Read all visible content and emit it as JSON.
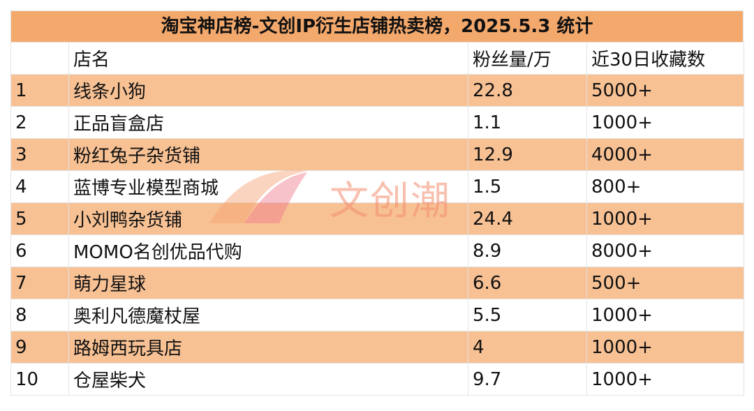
{
  "title": "淘宝神店榜-文创IP衍生店铺热卖榜，2025.5.3 统计",
  "table": {
    "columns": [
      "",
      "店名",
      "粉丝量/万",
      "近30日收藏数"
    ],
    "rows": [
      [
        1,
        "线条小狗",
        22.8,
        "5000+"
      ],
      [
        2,
        "正品盲盒店",
        1.1,
        "1000+"
      ],
      [
        3,
        "粉红兔子杂货铺",
        12.9,
        "4000+"
      ],
      [
        4,
        "蓝博专业模型商城",
        1.5,
        "800+"
      ],
      [
        5,
        "小刘鸭杂货铺",
        24.4,
        "1000+"
      ],
      [
        6,
        "MOMO名创优品代购",
        8.9,
        "8000+"
      ],
      [
        7,
        "萌力星球",
        6.6,
        "500+"
      ],
      [
        8,
        "奥利凡德魔杖屋",
        5.5,
        "1000+"
      ],
      [
        9,
        "路姆西玩具店",
        4,
        "1000+"
      ],
      [
        10,
        "仓屋柴犬",
        9.7,
        "1000+"
      ]
    ]
  },
  "watermark": "文创潮"
}
